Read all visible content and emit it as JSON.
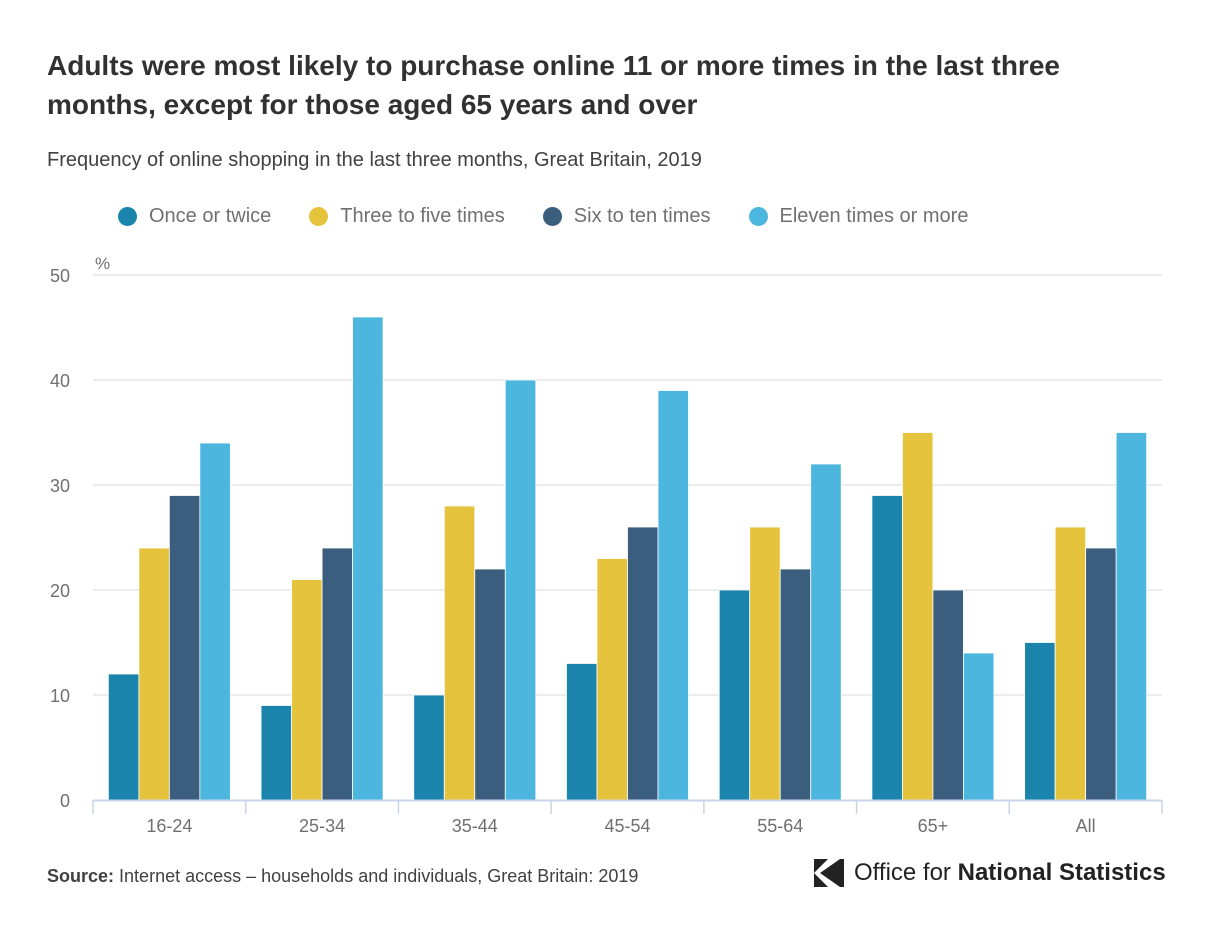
{
  "title": "Adults were most likely to purchase online 11 or more times in the last three months, except for those aged 65 years and over",
  "subtitle": "Frequency of online shopping in the last three months, Great Britain, 2019",
  "source": {
    "label": "Source:",
    "text": "Internet access – households and individuals, Great Britain: 2019"
  },
  "logo": {
    "part1": "Office for",
    "part2": "National Statistics"
  },
  "chart_data": {
    "type": "bar",
    "categories": [
      "16-24",
      "25-34",
      "35-44",
      "45-54",
      "55-64",
      "65+",
      "All"
    ],
    "series": [
      {
        "name": "Once or twice",
        "color": "#1a84ac",
        "values": [
          12,
          9,
          10,
          13,
          20,
          29,
          15
        ]
      },
      {
        "name": "Three to five times",
        "color": "#e6c33c",
        "values": [
          24,
          21,
          28,
          23,
          26,
          35,
          26
        ]
      },
      {
        "name": "Six to ten times",
        "color": "#3b5d7e",
        "values": [
          29,
          24,
          22,
          26,
          22,
          20,
          24
        ]
      },
      {
        "name": "Eleven times or more",
        "color": "#4db6df",
        "values": [
          34,
          46,
          40,
          39,
          32,
          14,
          35
        ]
      }
    ],
    "ylabel": "%",
    "ylim": [
      0,
      50
    ],
    "yticks": [
      0,
      10,
      20,
      30,
      40,
      50
    ],
    "grid": true,
    "legend": "top-left"
  }
}
